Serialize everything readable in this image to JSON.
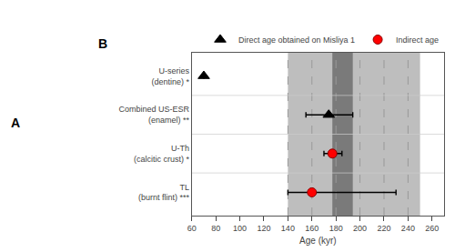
{
  "chart_data": {
    "type": "scatter",
    "annotations": [
      "A",
      "B"
    ],
    "xlabel": "Age (kyr)",
    "categories": [
      "U-series\n(dentine) *",
      "Combined US-ESR\n(enamel) **",
      "U-Th\n(calcitic crust) *",
      "TL\n(burnt flint) ***"
    ],
    "series": [
      {
        "name": "Direct age obtained on Misliya 1",
        "color": "black",
        "edge_color": "black",
        "marker": "triangle",
        "values": [
          70,
          174,
          null,
          null
        ],
        "error_minus": [
          0,
          19,
          null,
          null
        ],
        "error_plus": [
          0,
          20,
          null,
          null
        ]
      },
      {
        "name": "Indirect age",
        "color": "red",
        "edge_color": "darkred",
        "marker": "circle",
        "values": [
          null,
          null,
          177,
          160
        ],
        "error_minus": [
          null,
          null,
          7,
          20
        ],
        "error_plus": [
          null,
          null,
          8,
          70
        ]
      }
    ],
    "xlim": [
      60,
      270
    ],
    "xticks": [
      60,
      80,
      100,
      120,
      140,
      160,
      180,
      200,
      220,
      240,
      260
    ],
    "bands": [
      {
        "from": 140,
        "to": 250,
        "color": "#bebebe"
      },
      {
        "from": 177,
        "to": 194,
        "color": "#7a7a7a"
      }
    ],
    "vlines": {
      "values": [
        140,
        160,
        180,
        200,
        220,
        240
      ],
      "color": "#999999",
      "line_style": "dashed"
    },
    "background": "#ffffff",
    "grid": false,
    "legend": "upper right"
  }
}
